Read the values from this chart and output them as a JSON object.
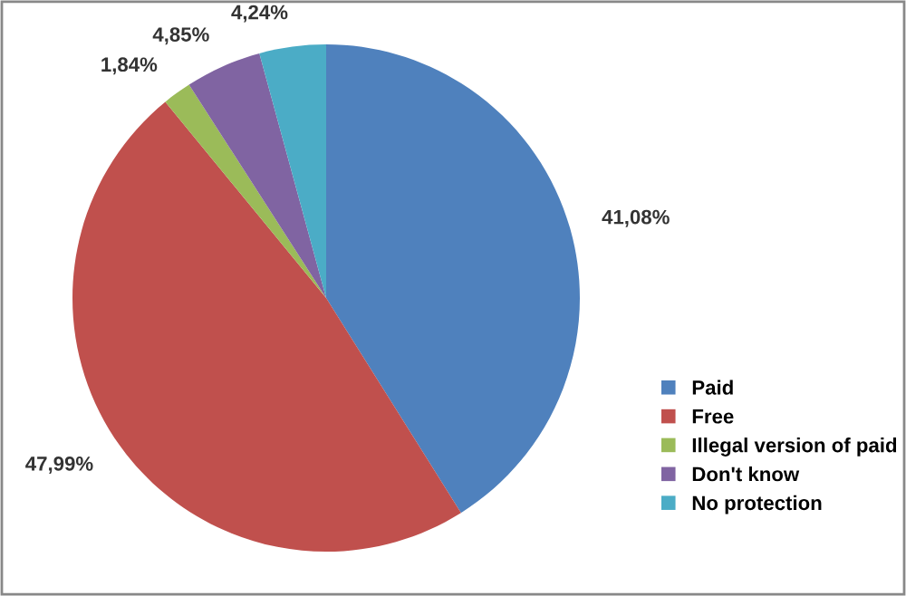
{
  "chart_data": {
    "type": "pie",
    "categories": [
      "Paid",
      "Free",
      "Illegal version of paid",
      "Don't know",
      "No protection"
    ],
    "values": [
      41.08,
      47.99,
      1.84,
      4.85,
      4.24
    ],
    "value_labels": [
      "41,08%",
      "47,99%",
      "1,84%",
      "4,85%",
      "4,24%"
    ],
    "colors": [
      "#4f81bd",
      "#c0504d",
      "#9bbb59",
      "#8064a2",
      "#4bacc6"
    ],
    "legend": "right"
  }
}
